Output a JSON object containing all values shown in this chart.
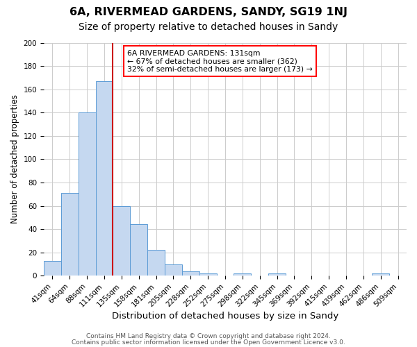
{
  "title": "6A, RIVERMEAD GARDENS, SANDY, SG19 1NJ",
  "subtitle": "Size of property relative to detached houses in Sandy",
  "xlabel": "Distribution of detached houses by size in Sandy",
  "ylabel": "Number of detached properties",
  "bin_labels": [
    "41sqm",
    "64sqm",
    "88sqm",
    "111sqm",
    "135sqm",
    "158sqm",
    "181sqm",
    "205sqm",
    "228sqm",
    "252sqm",
    "275sqm",
    "298sqm",
    "322sqm",
    "345sqm",
    "369sqm",
    "392sqm",
    "415sqm",
    "439sqm",
    "462sqm",
    "486sqm",
    "509sqm"
  ],
  "bar_heights": [
    13,
    71,
    140,
    167,
    60,
    44,
    22,
    10,
    4,
    2,
    0,
    2,
    0,
    2,
    0,
    0,
    0,
    0,
    0,
    2,
    0
  ],
  "bar_color": "#c5d8f0",
  "bar_edge_color": "#5b9bd5",
  "red_line_color": "#cc0000",
  "red_line_x": 3.5,
  "annotation_line1": "6A RIVERMEAD GARDENS: 131sqm",
  "annotation_line2": "← 67% of detached houses are smaller (362)",
  "annotation_line3": "32% of semi-detached houses are larger (173) →",
  "annotation_box_facecolor": "white",
  "annotation_box_edgecolor": "red",
  "ylim": [
    0,
    200
  ],
  "yticks": [
    0,
    20,
    40,
    60,
    80,
    100,
    120,
    140,
    160,
    180,
    200
  ],
  "grid_color": "#cccccc",
  "footer_line1": "Contains HM Land Registry data © Crown copyright and database right 2024.",
  "footer_line2": "Contains public sector information licensed under the Open Government Licence v3.0.",
  "title_fontsize": 11.5,
  "subtitle_fontsize": 10,
  "xlabel_fontsize": 9.5,
  "ylabel_fontsize": 8.5,
  "tick_fontsize": 7.5,
  "annotation_fontsize": 7.8,
  "footer_fontsize": 6.5
}
